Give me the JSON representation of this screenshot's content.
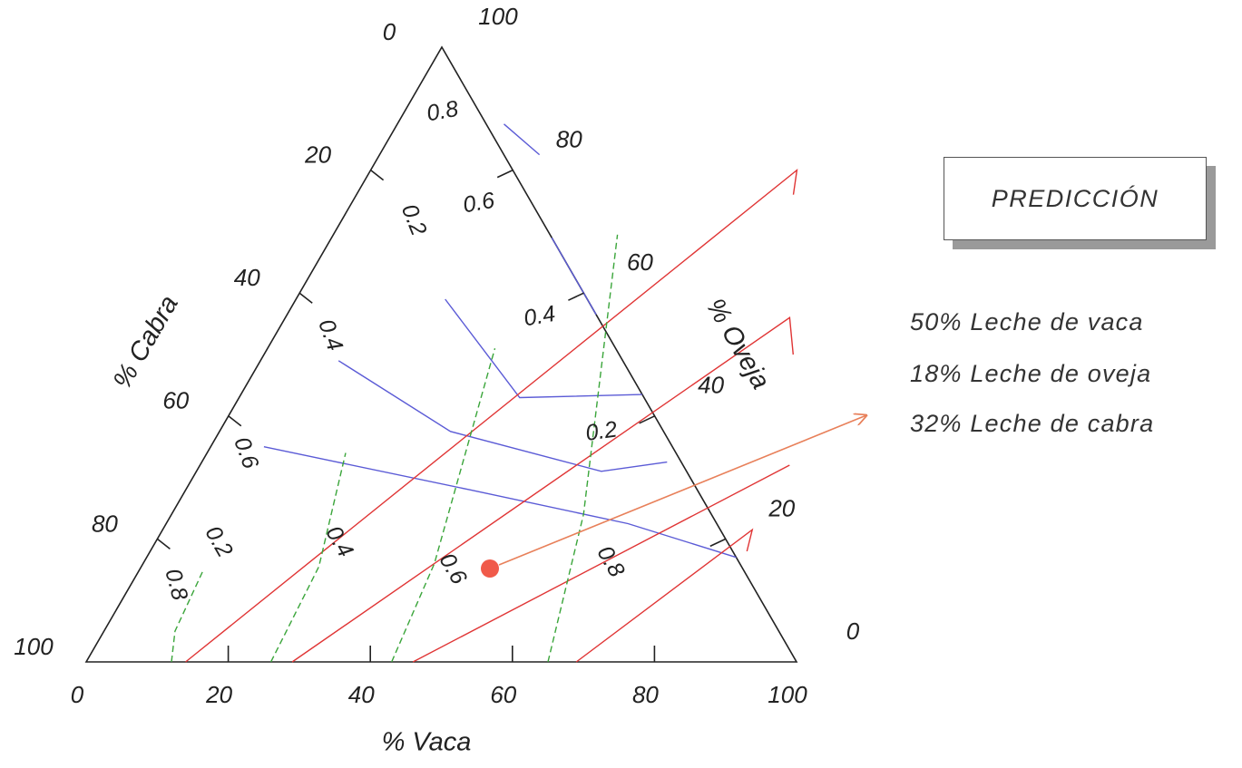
{
  "chart_data": {
    "type": "ternary-contour",
    "axes": {
      "vaca": {
        "label": "% Vaca",
        "ticks": [
          "0",
          "20",
          "40",
          "60",
          "80",
          "100"
        ]
      },
      "oveja": {
        "label": "% Oveja",
        "ticks": [
          "0",
          "20",
          "40",
          "60",
          "80",
          "100"
        ]
      },
      "cabra": {
        "label": "% Cabra",
        "ticks": [
          "0",
          "20",
          "40",
          "60",
          "80",
          "100"
        ]
      }
    },
    "contour_groups": [
      {
        "color": "#5b5bd6",
        "style": "solid",
        "levels": [
          {
            "label": "0.8",
            "points": [
              [
                15.0,
                87.5
              ],
              [
                22.5,
                82.5
              ]
            ]
          },
          {
            "label": "0.6",
            "points": [
              [
                31.0,
                69.0
              ],
              [
                43.5,
                56.5
              ]
            ]
          },
          {
            "label": "0.4",
            "points": [
              [
                21.0,
                59.0
              ],
              [
                39.5,
                43.0
              ],
              [
                56.5,
                43.5
              ]
            ]
          },
          {
            "label": "0.2",
            "points": [
              [
                11.0,
                49.0
              ],
              [
                32.5,
                37.5
              ],
              [
                57.0,
                31.0
              ],
              [
                65.5,
                32.5
              ]
            ]
          },
          {
            "label": "",
            "points": [
              [
                7.5,
                35.0
              ],
              [
                40.0,
                28.0
              ],
              [
                65.0,
                22.5
              ],
              [
                83.0,
                17.0
              ]
            ]
          }
        ]
      },
      {
        "color": "#e03535",
        "style": "solid",
        "levels": [
          {
            "label": "0.2",
            "points": [
              [
                14.0,
                0.0
              ],
              [
                60.0,
                80.0
              ],
              [
                61.5,
                76.0
              ]
            ]
          },
          {
            "label": "0.4",
            "points": [
              [
                29.0,
                0.0
              ],
              [
                71.0,
                56.0
              ],
              [
                74.5,
                50.0
              ]
            ]
          },
          {
            "label": "0.6",
            "points": [
              [
                46.0,
                0.0
              ],
              [
                83.0,
                32.0
              ]
            ]
          },
          {
            "label": "0.8",
            "points": [
              [
                69.0,
                0.0
              ],
              [
                83.0,
                21.5
              ],
              [
                84.0,
                18.0
              ]
            ]
          }
        ]
      },
      {
        "color": "#3aa53a",
        "style": "dashed",
        "levels": [
          {
            "label": "0.8",
            "points": [
              [
                12.0,
                0.0
              ],
              [
                10.0,
                5.0
              ],
              [
                9.0,
                15.0
              ]
            ]
          },
          {
            "label": "0.6",
            "points": [
              [
                26.0,
                0.0
              ],
              [
                25.0,
                15.5
              ],
              [
                19.5,
                34.0
              ]
            ]
          },
          {
            "label": "0.4",
            "points": [
              [
                43.0,
                0.0
              ],
              [
                41.0,
                16.0
              ],
              [
                32.0,
                51.0
              ]
            ]
          },
          {
            "label": "0.2",
            "points": [
              [
                65.0,
                0.0
              ],
              [
                58.0,
                24.0
              ],
              [
                40.0,
                69.5
              ]
            ]
          }
        ]
      }
    ],
    "prediction_point": {
      "vaca": 50,
      "oveja": 18,
      "cabra": 32,
      "color": "#f05a4a"
    }
  },
  "legend": {
    "title": "PREDICCIÓN",
    "lines": [
      "50% Leche de vaca",
      "18% Leche de oveja",
      "32% Leche de cabra"
    ]
  }
}
